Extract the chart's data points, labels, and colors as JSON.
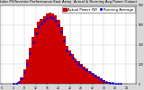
{
  "title": "Solar PV/Inverter Performance East Array  Actual & Running Avg Power Output",
  "bg_color": "#d8d8d8",
  "plot_bg": "#ffffff",
  "bar_color": "#cc0000",
  "avg_color": "#0000ee",
  "grid_color": "#aaaaaa",
  "title_fontsize": 2.8,
  "tick_fontsize": 2.2,
  "bar_heights": [
    0,
    0,
    0,
    0,
    2,
    8,
    25,
    70,
    150,
    250,
    370,
    480,
    570,
    630,
    660,
    690,
    710,
    720,
    715,
    695,
    650,
    580,
    490,
    390,
    340,
    300,
    260,
    230,
    200,
    175,
    155,
    135,
    115,
    95,
    75,
    55,
    38,
    25,
    18,
    12,
    7,
    4,
    2,
    1,
    0,
    0,
    0,
    0
  ],
  "avg_y": [
    0,
    0,
    0,
    0,
    1,
    5,
    18,
    55,
    120,
    200,
    310,
    420,
    510,
    575,
    610,
    645,
    665,
    675,
    665,
    645,
    600,
    530,
    440,
    345,
    305,
    268,
    235,
    208,
    182,
    158,
    140,
    122,
    103,
    85,
    68,
    50,
    34,
    22,
    16,
    10,
    6,
    3,
    1,
    0,
    0,
    0,
    0,
    0
  ],
  "ylim": [
    0,
    800
  ],
  "yticks": [
    0,
    200,
    400,
    600,
    800
  ],
  "ytick_labels": [
    "0",
    "200",
    "400",
    "600",
    "800"
  ],
  "n_bars": 48,
  "xtick_step": 4,
  "legend_actual": "Actual Power (W)",
  "legend_avg": "Running Average"
}
